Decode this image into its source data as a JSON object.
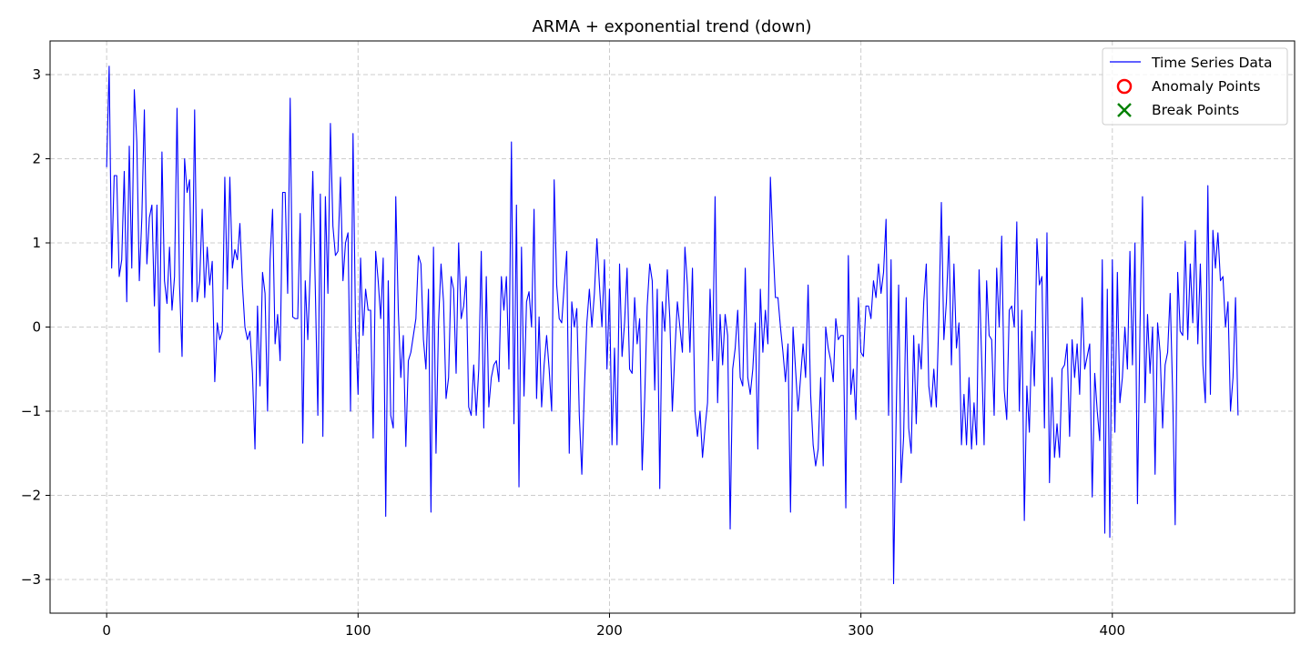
{
  "chart_data": {
    "type": "line",
    "title": "ARMA + exponential trend (down)",
    "xlabel": "",
    "ylabel": "",
    "xlim": [
      -22.5,
      472.5
    ],
    "ylim": [
      -3.4,
      3.4
    ],
    "xticks": [
      0,
      100,
      200,
      300,
      400
    ],
    "xtick_labels": [
      "0",
      "100",
      "200",
      "300",
      "400"
    ],
    "yticks": [
      -3,
      -2,
      -1,
      0,
      1,
      2,
      3
    ],
    "ytick_labels": [
      "−3",
      "−2",
      "−1",
      "0",
      "1",
      "2",
      "3"
    ],
    "grid": true,
    "legend_position": "top-right",
    "legend": [
      {
        "label": "Time Series Data",
        "marker": "line",
        "color": "#0000ff"
      },
      {
        "label": "Anomaly Points",
        "marker": "circle",
        "color": "#ff0000"
      },
      {
        "label": "Break Points",
        "marker": "x",
        "color": "#008000"
      }
    ],
    "series": [
      {
        "name": "Time Series Data",
        "color": "#0000ff",
        "x_start": 0,
        "x_step": 1,
        "values": [
          1.9,
          3.1,
          0.7,
          1.8,
          1.8,
          0.6,
          0.8,
          1.85,
          0.3,
          2.15,
          0.7,
          2.82,
          2.2,
          0.55,
          1.3,
          2.58,
          0.75,
          1.3,
          1.45,
          0.25,
          1.45,
          -0.3,
          2.08,
          0.55,
          0.28,
          0.95,
          0.2,
          0.6,
          2.6,
          0.5,
          -0.35,
          2.0,
          1.6,
          1.75,
          0.3,
          2.58,
          0.3,
          0.55,
          1.4,
          0.35,
          0.95,
          0.5,
          0.78,
          -0.65,
          0.05,
          -0.15,
          -0.05,
          1.78,
          0.45,
          1.78,
          0.7,
          0.92,
          0.8,
          1.23,
          0.5,
          0.0,
          -0.15,
          -0.05,
          -0.55,
          -1.45,
          0.25,
          -0.7,
          0.65,
          0.4,
          -1.0,
          0.8,
          1.4,
          -0.2,
          0.15,
          -0.4,
          1.6,
          1.6,
          0.4,
          2.72,
          0.12,
          0.1,
          0.1,
          1.35,
          -1.38,
          0.55,
          -0.15,
          0.7,
          1.85,
          0.45,
          -1.05,
          1.58,
          -1.3,
          1.55,
          0.4,
          2.42,
          1.2,
          0.85,
          0.9,
          1.78,
          0.55,
          1.0,
          1.12,
          -1.0,
          2.3,
          0.0,
          -0.8,
          0.82,
          -0.1,
          0.45,
          0.2,
          0.2,
          -1.32,
          0.9,
          0.55,
          0.1,
          0.82,
          -2.25,
          0.55,
          -1.05,
          -1.2,
          1.55,
          0.2,
          -0.6,
          -0.1,
          -1.42,
          -0.4,
          -0.3,
          -0.1,
          0.1,
          0.85,
          0.75,
          -0.15,
          -0.5,
          0.45,
          -2.2,
          0.95,
          -1.5,
          0.05,
          0.75,
          0.3,
          -0.85,
          -0.6,
          0.6,
          0.45,
          -0.55,
          1.0,
          0.1,
          0.25,
          0.6,
          -0.95,
          -1.05,
          -0.45,
          -1.05,
          -0.5,
          0.9,
          -1.2,
          0.6,
          -0.95,
          -0.6,
          -0.45,
          -0.4,
          -0.65,
          0.6,
          0.2,
          0.6,
          -0.5,
          2.2,
          -1.15,
          1.45,
          -1.9,
          0.95,
          -0.82,
          0.3,
          0.42,
          0.0,
          1.4,
          -0.85,
          0.12,
          -0.95,
          -0.45,
          -0.1,
          -0.5,
          -1.0,
          1.75,
          0.5,
          0.1,
          0.05,
          0.5,
          0.9,
          -1.5,
          0.3,
          0.0,
          0.22,
          -1.05,
          -1.75,
          -0.75,
          0.05,
          0.45,
          0.0,
          0.4,
          1.05,
          0.5,
          0.0,
          0.8,
          -0.5,
          0.45,
          -1.4,
          -0.25,
          -1.4,
          0.75,
          -0.35,
          0.05,
          0.7,
          -0.5,
          -0.55,
          0.35,
          -0.2,
          0.1,
          -1.7,
          -0.85,
          0.25,
          0.75,
          0.55,
          -0.75,
          0.45,
          -1.92,
          0.3,
          -0.05,
          0.68,
          0.1,
          -1.0,
          -0.3,
          0.3,
          0.0,
          -0.3,
          0.95,
          0.5,
          -0.3,
          0.7,
          -1.0,
          -1.3,
          -1.0,
          -1.55,
          -1.2,
          -0.9,
          0.45,
          -0.4,
          1.55,
          -0.9,
          0.15,
          -0.45,
          0.15,
          -0.1,
          -2.4,
          -0.5,
          -0.25,
          0.2,
          -0.6,
          -0.7,
          0.7,
          -0.6,
          -0.8,
          -0.5,
          0.05,
          -1.45,
          0.45,
          -0.3,
          0.2,
          -0.2,
          1.78,
          1.0,
          0.35,
          0.35,
          0.0,
          -0.3,
          -0.65,
          -0.2,
          -2.2,
          0.0,
          -0.5,
          -1.0,
          -0.6,
          -0.2,
          -0.6,
          0.5,
          -0.8,
          -1.4,
          -1.65,
          -1.45,
          -0.6,
          -1.65,
          0.0,
          -0.25,
          -0.4,
          -0.65,
          0.1,
          -0.15,
          -0.1,
          -0.1,
          -2.15,
          0.85,
          -0.8,
          -0.5,
          -1.1,
          0.35,
          -0.3,
          -0.35,
          0.25,
          0.25,
          0.1,
          0.55,
          0.35,
          0.75,
          0.4,
          0.65,
          1.28,
          -1.05,
          0.8,
          -3.05,
          -1.1,
          0.5,
          -1.85,
          -1.3,
          0.35,
          -1.2,
          -1.5,
          -0.1,
          -1.15,
          -0.2,
          -0.5,
          0.3,
          0.75,
          -0.7,
          -0.95,
          -0.5,
          -0.95,
          0.1,
          1.48,
          -0.15,
          0.3,
          1.08,
          -0.45,
          0.75,
          -0.25,
          0.05,
          -1.4,
          -0.8,
          -1.4,
          -0.6,
          -1.45,
          -0.9,
          -1.4,
          0.68,
          -0.35,
          -1.4,
          0.55,
          -0.1,
          -0.15,
          -1.05,
          0.7,
          0.0,
          1.08,
          -0.75,
          -1.1,
          0.2,
          0.25,
          0.0,
          1.25,
          -1.0,
          0.2,
          -2.3,
          -0.7,
          -1.25,
          -0.05,
          -0.7,
          1.05,
          0.5,
          0.6,
          -1.2,
          1.12,
          -1.85,
          -0.6,
          -1.55,
          -1.15,
          -1.55,
          -0.5,
          -0.45,
          -0.2,
          -1.3,
          -0.15,
          -0.6,
          -0.2,
          -0.8,
          0.35,
          -0.5,
          -0.35,
          -0.2,
          -2.02,
          -0.55,
          -1.0,
          -1.35,
          0.8,
          -2.45,
          0.45,
          -2.5,
          0.8,
          -1.25,
          0.65,
          -0.9,
          -0.6,
          0.0,
          -0.5,
          0.9,
          -0.45,
          1.0,
          -2.1,
          0.0,
          1.55,
          -0.9,
          0.15,
          -0.55,
          0.0,
          -1.75,
          0.05,
          -0.3,
          -1.2,
          -0.45,
          -0.3,
          0.4,
          -0.8,
          -2.35,
          0.65,
          -0.05,
          -0.1,
          1.02,
          -0.15,
          0.75,
          0.05,
          1.15,
          -0.2,
          0.75,
          -0.45,
          -0.9,
          1.68,
          -0.8,
          1.15,
          0.7,
          1.12,
          0.55,
          0.6,
          0.0,
          0.3,
          -1.0,
          -0.6,
          0.35,
          -1.05
        ]
      }
    ]
  }
}
